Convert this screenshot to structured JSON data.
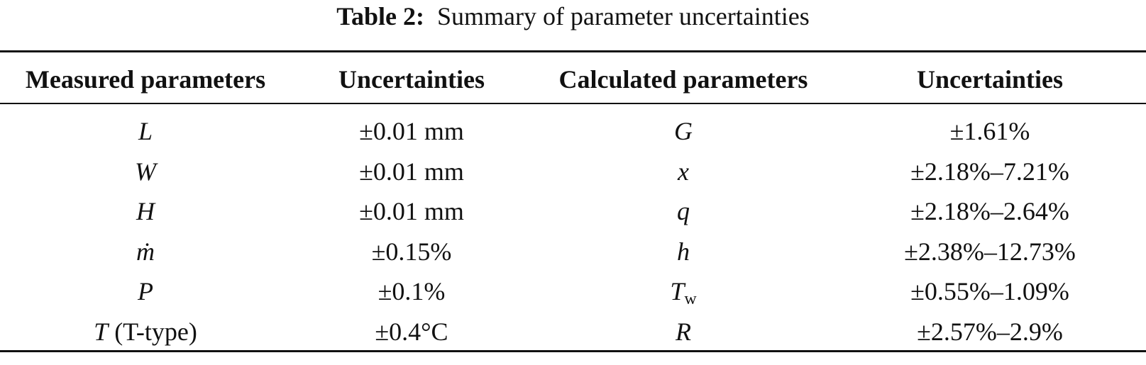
{
  "caption": {
    "label": "Table 2:",
    "text": "Summary of parameter uncertainties"
  },
  "table": {
    "headers": [
      "Measured parameters",
      "Uncertainties",
      "Calculated parameters",
      "Uncertainties"
    ],
    "rows": [
      {
        "measured": {
          "symbol": "L"
        },
        "measured_uncertainty": "±0.01 mm",
        "calculated": {
          "symbol": "G"
        },
        "calculated_uncertainty": "±1.61%"
      },
      {
        "measured": {
          "symbol": "W"
        },
        "measured_uncertainty": "±0.01 mm",
        "calculated": {
          "symbol": "x"
        },
        "calculated_uncertainty": "±2.18%–7.21%"
      },
      {
        "measured": {
          "symbol": "H"
        },
        "measured_uncertainty": "±0.01 mm",
        "calculated": {
          "symbol": "q"
        },
        "calculated_uncertainty": "±2.18%–2.64%"
      },
      {
        "measured": {
          "symbol": "ṁ"
        },
        "measured_uncertainty": "±0.15%",
        "calculated": {
          "symbol": "h"
        },
        "calculated_uncertainty": "±2.38%–12.73%"
      },
      {
        "measured": {
          "symbol": "P"
        },
        "measured_uncertainty": "±0.1%",
        "calculated": {
          "symbol": "T",
          "subscript": "w"
        },
        "calculated_uncertainty": "±0.55%–1.09%"
      },
      {
        "measured": {
          "symbol": "T",
          "note": "(T-type)"
        },
        "measured_uncertainty": "±0.4°C",
        "calculated": {
          "symbol": "R"
        },
        "calculated_uncertainty": "±2.57%–2.9%"
      }
    ]
  }
}
